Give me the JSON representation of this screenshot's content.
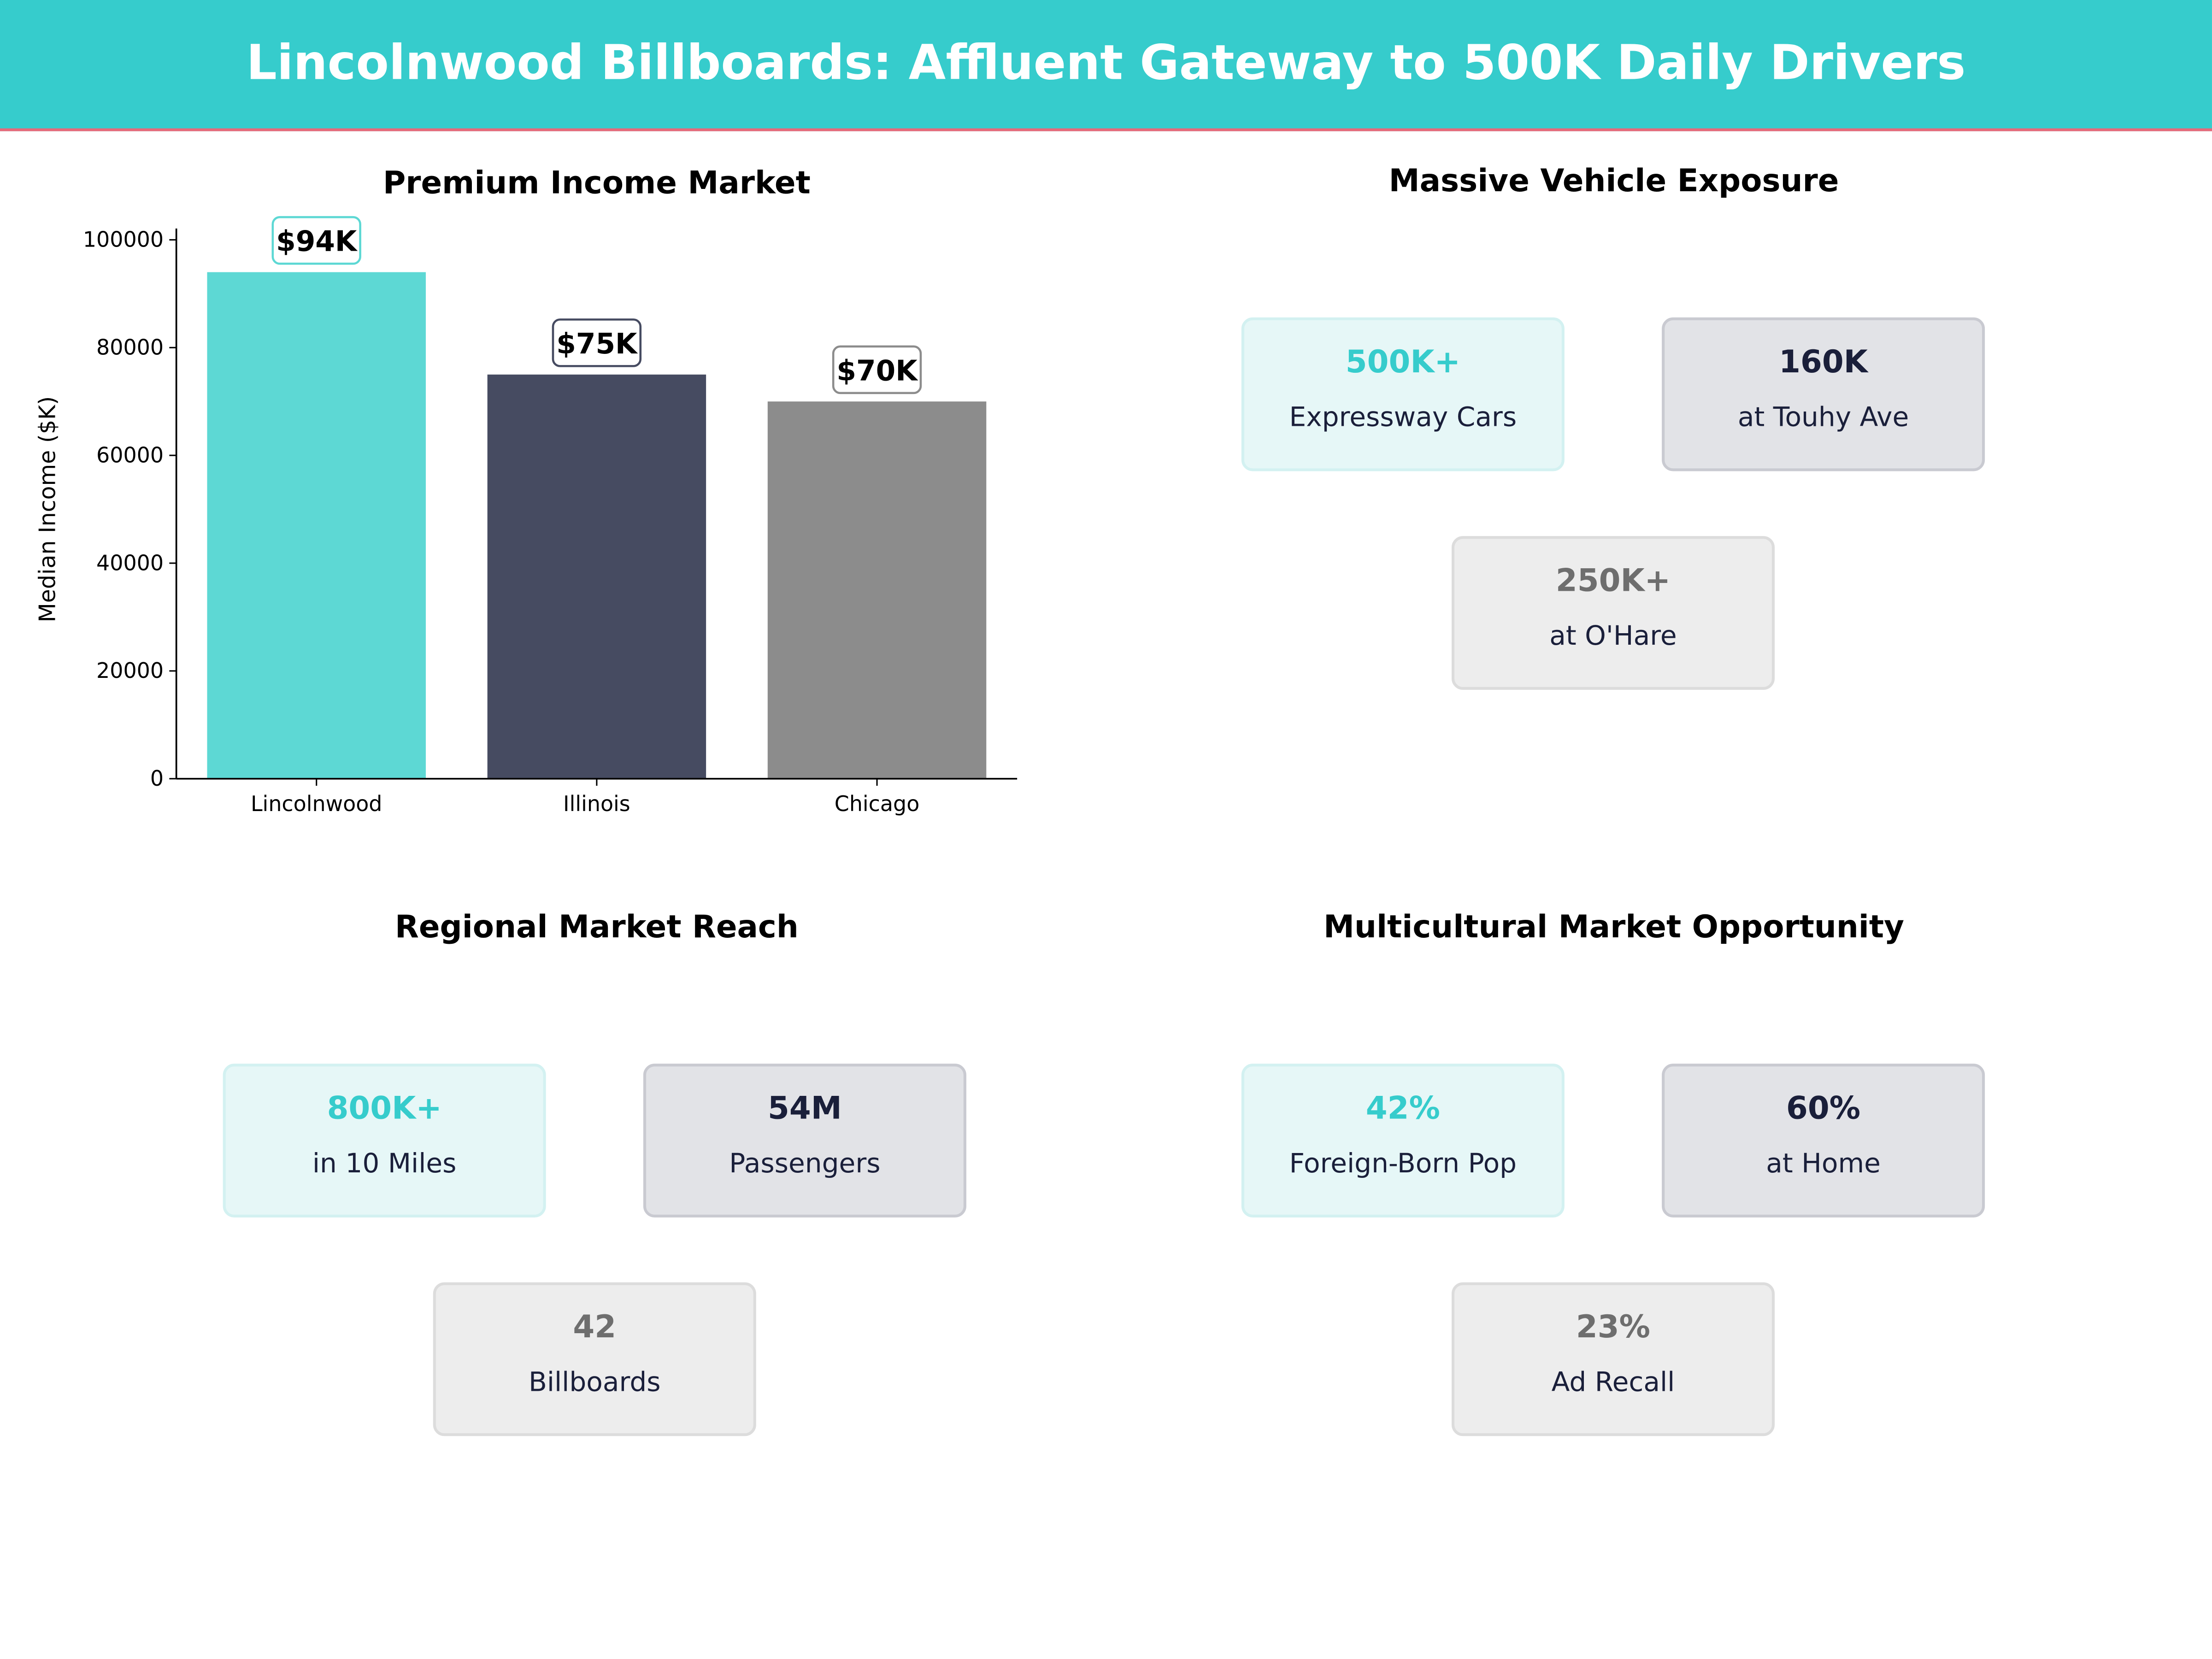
{
  "header": {
    "title": "Lincolnwood Billboards: Affluent Gateway to 500K Daily Drivers"
  },
  "colors": {
    "header": "#36CCCC",
    "accent_line": "#E8697A",
    "lincolnwood": "#5DD8D4",
    "illinois": "#464B61",
    "chicago": "#8C8C8C"
  },
  "chart_data": {
    "type": "bar",
    "title": "Premium Income Market",
    "ylabel": "Median Income ($K)",
    "xlabel": "",
    "categories": [
      "Lincolnwood",
      "Illinois",
      "Chicago"
    ],
    "values": [
      94000,
      75000,
      70000
    ],
    "data_labels": [
      "$94K",
      "$75K",
      "$70K"
    ],
    "colors": [
      "#5DD8D4",
      "#464B61",
      "#8C8C8C"
    ],
    "ylim": [
      0,
      100000
    ],
    "yticks": [
      0,
      20000,
      40000,
      60000,
      80000,
      100000
    ],
    "grid": false
  },
  "panels": [
    {
      "title": "Massive Vehicle Exposure",
      "cards": [
        {
          "value": "500K+",
          "label": "Expressway Cars"
        },
        {
          "value": "160K",
          "label": "at Touhy Ave"
        },
        {
          "value": "250K+",
          "label": "at O'Hare"
        }
      ]
    },
    {
      "title": "Regional Market Reach",
      "cards": [
        {
          "value": "800K+",
          "label": "in 10 Miles"
        },
        {
          "value": "54M",
          "label": "Passengers"
        },
        {
          "value": "42",
          "label": "Billboards"
        }
      ]
    },
    {
      "title": "Multicultural Market Opportunity",
      "cards": [
        {
          "value": "42%",
          "label": "Foreign-Born Pop"
        },
        {
          "value": "60%",
          "label": "at Home"
        },
        {
          "value": "23%",
          "label": "Ad Recall"
        }
      ]
    }
  ]
}
